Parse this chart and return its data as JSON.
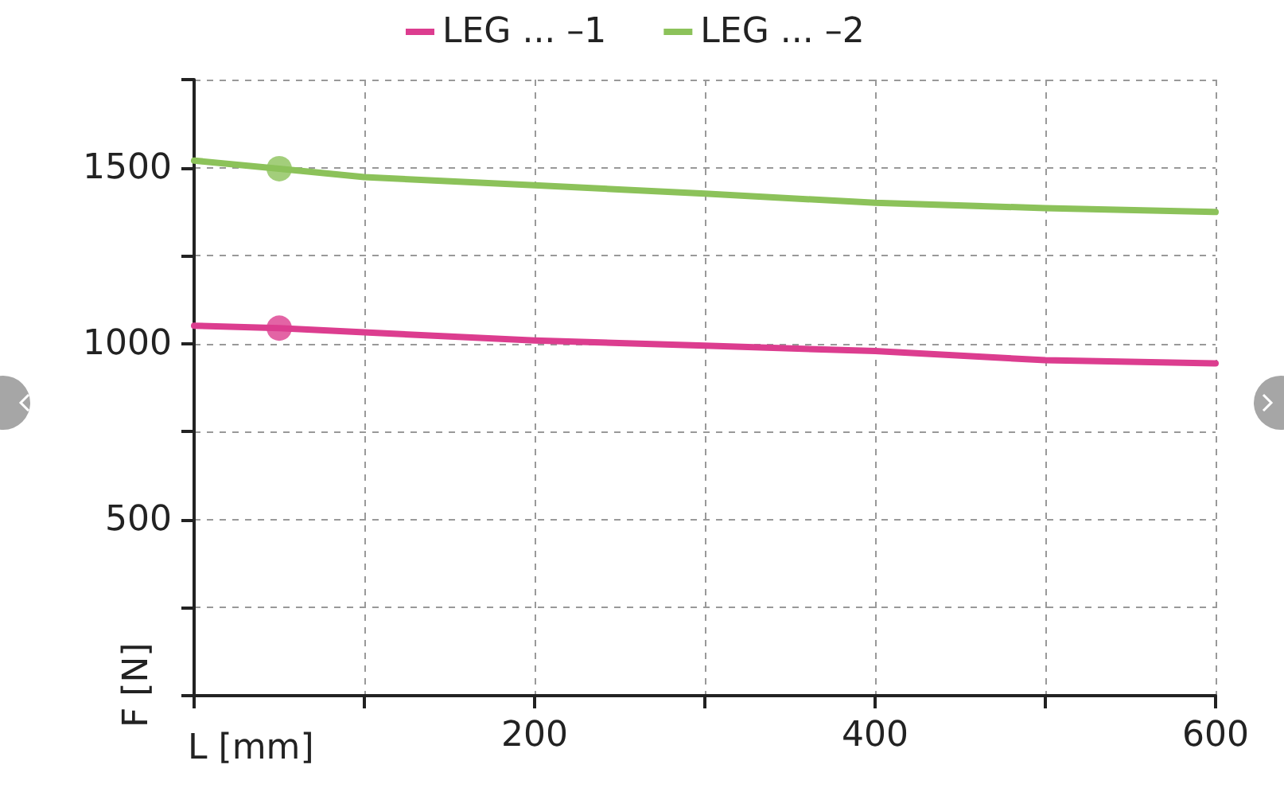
{
  "chart_data": {
    "type": "line",
    "xlabel": "L [mm]",
    "ylabel": "F [N]",
    "x": [
      0,
      50,
      100,
      200,
      300,
      400,
      500,
      600
    ],
    "series": [
      {
        "name": "LEG ... –1",
        "color": "#dc3d8f",
        "values": [
          1051,
          1044,
          1032,
          1009,
          994,
          979,
          953,
          944
        ]
      },
      {
        "name": "LEG ... –2",
        "color": "#8cc25a",
        "values": [
          1520,
          1497,
          1473,
          1450,
          1426,
          1400,
          1385,
          1374
        ]
      },
      {
        "type": "scatter",
        "color": "#dc3d8f",
        "x": [
          50
        ],
        "values": [
          1044
        ]
      },
      {
        "type": "scatter",
        "color": "#8cc25a",
        "x": [
          50
        ],
        "values": [
          1497
        ]
      }
    ],
    "xlim": [
      0,
      600
    ],
    "xticks": [
      {
        "value": 0,
        "label": null
      },
      {
        "value": 100,
        "label": null
      },
      200,
      {
        "value": 300,
        "label": null
      },
      400,
      {
        "value": 500,
        "label": null
      },
      600
    ],
    "ylim": [
      0,
      1750
    ],
    "yticks": [
      {
        "value": 0,
        "label": null
      },
      {
        "value": 250,
        "label": null
      },
      500,
      {
        "value": 750,
        "label": null
      },
      1000,
      {
        "value": 1250,
        "label": null
      },
      1500,
      {
        "value": 1750,
        "label": null
      }
    ],
    "grid": true,
    "legend": "top"
  }
}
